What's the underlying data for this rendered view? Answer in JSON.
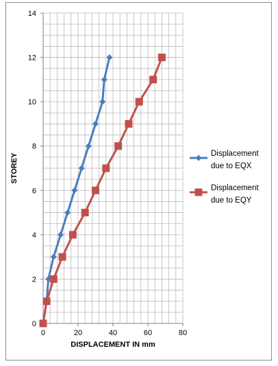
{
  "chart_data": {
    "type": "line",
    "xlabel": "DISPLACEMENT IN mm",
    "ylabel": "STOREY",
    "xlim": [
      0,
      80
    ],
    "ylim": [
      0,
      14
    ],
    "x_ticks": [
      0,
      20,
      40,
      60,
      80
    ],
    "y_ticks": [
      0,
      2,
      4,
      6,
      8,
      10,
      12,
      14
    ],
    "grid": true,
    "minor_grid": true,
    "legend_position": "right",
    "series": [
      {
        "name_lines": [
          "Displacement",
          "due to EQX"
        ],
        "color": "#4a7dbf",
        "marker": "diamond",
        "x": [
          0,
          2,
          3,
          6,
          10,
          14,
          18,
          22,
          26,
          30,
          34,
          35,
          38
        ],
        "y": [
          0,
          1,
          2,
          3,
          4,
          5,
          6,
          7,
          8,
          9,
          10,
          11,
          12
        ]
      },
      {
        "name_lines": [
          "Displacement",
          "due to EQY"
        ],
        "color": "#c0504d",
        "marker": "square",
        "x": [
          0,
          2,
          6,
          11,
          17,
          24,
          30,
          36,
          43,
          49,
          55,
          63,
          68
        ],
        "y": [
          0,
          1,
          2,
          3,
          4,
          5,
          6,
          7,
          8,
          9,
          10,
          11,
          12
        ]
      }
    ]
  }
}
